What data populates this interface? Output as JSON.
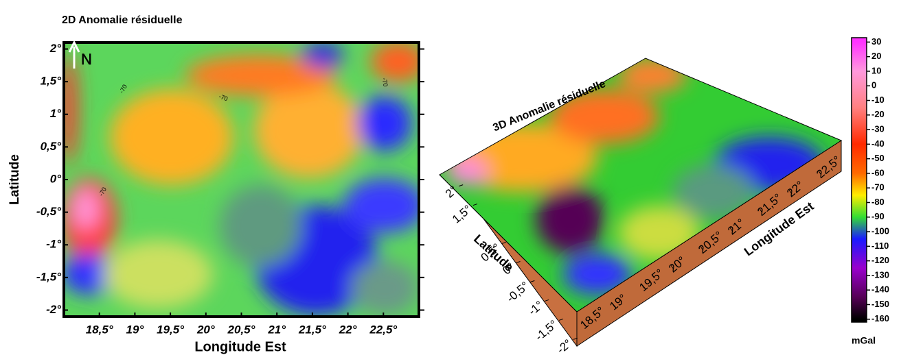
{
  "chart_data": [
    {
      "type": "heatmap",
      "title": "2D Anomalie résiduelle",
      "xlabel": "Longitude Est",
      "ylabel": "Latitude",
      "xlim": [
        18.0,
        23.0
      ],
      "ylim": [
        -2.1,
        2.1
      ],
      "xticks": [
        {
          "value": 18.5,
          "label": "18,5°"
        },
        {
          "value": 19,
          "label": "19°"
        },
        {
          "value": 19.5,
          "label": "19,5°"
        },
        {
          "value": 20,
          "label": "20°"
        },
        {
          "value": 20.5,
          "label": "20,5°"
        },
        {
          "value": 21,
          "label": "21°"
        },
        {
          "value": 21.5,
          "label": "21,5°"
        },
        {
          "value": 22,
          "label": "22°"
        },
        {
          "value": 22.5,
          "label": "22,5°"
        }
      ],
      "yticks": [
        {
          "value": 2,
          "label": "2°"
        },
        {
          "value": 1.5,
          "label": "1,5°"
        },
        {
          "value": 1,
          "label": "1°"
        },
        {
          "value": 0.5,
          "label": "0,5°"
        },
        {
          "value": 0,
          "label": "0°"
        },
        {
          "value": -0.5,
          "label": "-0,5°"
        },
        {
          "value": -1,
          "label": "-1°"
        },
        {
          "value": -1.5,
          "label": "-1,5°"
        },
        {
          "value": -2,
          "label": "-2°"
        }
      ],
      "north_label": "N",
      "contour_labels": [
        "-70",
        "-70",
        "-70",
        "-70"
      ],
      "colorbar": {
        "label": "mGal",
        "lim": [
          -162,
          33
        ],
        "ticks": [
          30,
          20,
          10,
          0,
          -10,
          -20,
          -30,
          -40,
          -50,
          -60,
          -70,
          -80,
          -90,
          -100,
          -110,
          -120,
          -130,
          -140,
          -150,
          -160
        ],
        "colorscale": [
          [
            30,
            "#ff33ff"
          ],
          [
            10,
            "#ff99dd"
          ],
          [
            -15,
            "#ff8080"
          ],
          [
            -40,
            "#ff2a00"
          ],
          [
            -60,
            "#ff6a00"
          ],
          [
            -75,
            "#ffee00"
          ],
          [
            -90,
            "#33dd33"
          ],
          [
            -105,
            "#1a1aff"
          ],
          [
            -125,
            "#9900cc"
          ],
          [
            -145,
            "#550055"
          ],
          [
            -160,
            "#000000"
          ]
        ]
      }
    },
    {
      "type": "surface",
      "title": "3D Anomalie résiduelle",
      "xlabel": "Longitude Est",
      "ylabel": "Latitude",
      "xlim": [
        18.0,
        23.0
      ],
      "ylim": [
        -2.1,
        2.1
      ],
      "xticks": [
        {
          "value": 18.5,
          "label": "18,5°"
        },
        {
          "value": 19,
          "label": "19°"
        },
        {
          "value": 19.5,
          "label": "19,5°"
        },
        {
          "value": 20,
          "label": "20°"
        },
        {
          "value": 20.5,
          "label": "20,5°"
        },
        {
          "value": 21,
          "label": "21°"
        },
        {
          "value": 21.5,
          "label": "21,5°"
        },
        {
          "value": 22,
          "label": "22°"
        },
        {
          "value": 22.5,
          "label": "22,5°"
        }
      ],
      "yticks": [
        {
          "value": 2,
          "label": "2°"
        },
        {
          "value": 1.5,
          "label": "1,5°"
        },
        {
          "value": 0.5,
          "label": "0,5°"
        },
        {
          "value": 0,
          "label": "0°"
        },
        {
          "value": -0.5,
          "label": "-0,5°"
        },
        {
          "value": -1,
          "label": "-1°"
        },
        {
          "value": -1.5,
          "label": "-1,5°"
        },
        {
          "value": -2,
          "label": "-2°"
        }
      ]
    }
  ]
}
